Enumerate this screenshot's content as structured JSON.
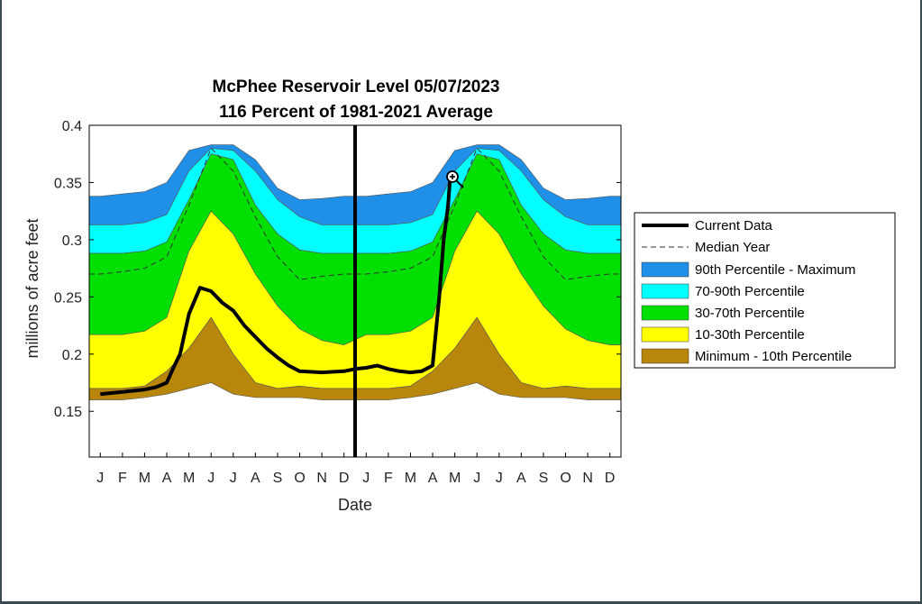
{
  "chart_data": {
    "type": "area",
    "title": "McPhee Reservoir Level 05/07/2023",
    "subtitle": "116 Percent of 1981-2021 Average",
    "xlabel": "Date",
    "ylabel": "millions of acre feet",
    "ylim": [
      0.11,
      0.4
    ],
    "yticks": [
      "0.4",
      "0.35",
      "0.3",
      "0.25",
      "0.2",
      "0.15"
    ],
    "x_ticks": [
      "J",
      "F",
      "M",
      "A",
      "M",
      "J",
      "J",
      "A",
      "S",
      "O",
      "N",
      "D",
      "J",
      "F",
      "M",
      "A",
      "M",
      "J",
      "J",
      "A",
      "S",
      "O",
      "N",
      "D"
    ],
    "current_date_marker": "J",
    "legend_position": "right",
    "months": [
      1,
      2,
      3,
      4,
      5,
      6,
      7,
      8,
      9,
      10,
      11,
      12
    ],
    "bands": [
      {
        "name": "90th Percentile - Maximum",
        "color": "#1f8fe8",
        "lower": [
          0.313,
          0.313,
          0.315,
          0.322,
          0.36,
          0.38,
          0.378,
          0.36,
          0.335,
          0.32,
          0.313,
          0.313
        ],
        "upper": [
          0.338,
          0.34,
          0.342,
          0.35,
          0.378,
          0.383,
          0.383,
          0.37,
          0.345,
          0.335,
          0.336,
          0.338
        ]
      },
      {
        "name": "70-90th Percentile",
        "color": "#00ffff",
        "lower": [
          0.288,
          0.288,
          0.29,
          0.298,
          0.335,
          0.375,
          0.37,
          0.33,
          0.305,
          0.291,
          0.288,
          0.288
        ],
        "upper": [
          0.313,
          0.313,
          0.315,
          0.322,
          0.36,
          0.38,
          0.378,
          0.36,
          0.335,
          0.32,
          0.313,
          0.313
        ]
      },
      {
        "name": "30-70th Percentile",
        "color": "#00e000",
        "lower": [
          0.217,
          0.217,
          0.22,
          0.232,
          0.29,
          0.325,
          0.305,
          0.27,
          0.242,
          0.222,
          0.212,
          0.208
        ],
        "upper": [
          0.288,
          0.288,
          0.29,
          0.298,
          0.335,
          0.375,
          0.37,
          0.33,
          0.305,
          0.291,
          0.288,
          0.288
        ]
      },
      {
        "name": "10-30th Percentile",
        "color": "#ffff00",
        "lower": [
          0.17,
          0.17,
          0.172,
          0.185,
          0.205,
          0.232,
          0.2,
          0.175,
          0.17,
          0.172,
          0.17,
          0.17
        ],
        "upper": [
          0.217,
          0.217,
          0.22,
          0.232,
          0.29,
          0.325,
          0.305,
          0.27,
          0.242,
          0.222,
          0.212,
          0.208
        ]
      },
      {
        "name": "Minimum - 10th Percentile",
        "color": "#b8860b",
        "lower": [
          0.16,
          0.16,
          0.162,
          0.165,
          0.17,
          0.175,
          0.165,
          0.162,
          0.162,
          0.162,
          0.16,
          0.16
        ],
        "upper": [
          0.17,
          0.17,
          0.172,
          0.185,
          0.205,
          0.232,
          0.2,
          0.175,
          0.17,
          0.172,
          0.17,
          0.17
        ]
      }
    ],
    "median": {
      "name": "Median Year",
      "values": [
        0.27,
        0.272,
        0.275,
        0.285,
        0.33,
        0.38,
        0.36,
        0.32,
        0.285,
        0.265,
        0.268,
        0.27
      ]
    },
    "current": {
      "name": "Current Data",
      "x": [
        1,
        2,
        3,
        3.5,
        4,
        4.3,
        4.6,
        5,
        5.5,
        6,
        6.5,
        7,
        7.5,
        8,
        8.5,
        9,
        9.5,
        10,
        11,
        12,
        12.5,
        13,
        13.5,
        14,
        14.5,
        15,
        15.5,
        16,
        16.3,
        16.5,
        16.7,
        16.8
      ],
      "y": [
        0.165,
        0.167,
        0.169,
        0.171,
        0.175,
        0.188,
        0.2,
        0.235,
        0.258,
        0.255,
        0.245,
        0.238,
        0.225,
        0.215,
        0.205,
        0.197,
        0.19,
        0.185,
        0.184,
        0.185,
        0.187,
        0.188,
        0.19,
        0.187,
        0.185,
        0.184,
        0.185,
        0.19,
        0.25,
        0.3,
        0.33,
        0.357
      ]
    },
    "colors": {
      "frame": "#000000",
      "current": "#000000",
      "median": "#333333",
      "band_edge": "#555555"
    }
  }
}
